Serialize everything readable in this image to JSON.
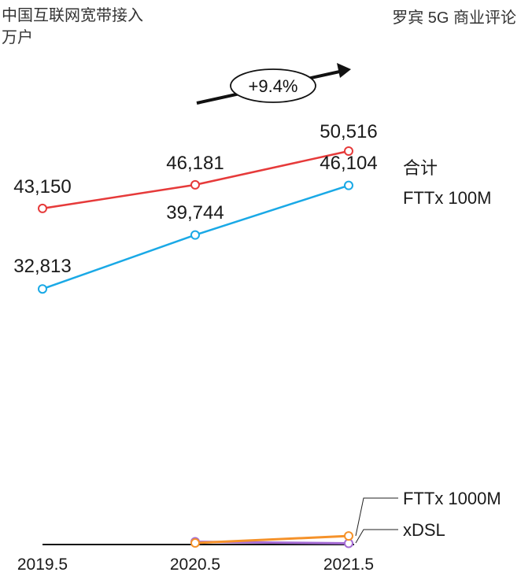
{
  "header": {
    "title_line1": "中国互联网宽带接入",
    "title_line2": "万户",
    "source": "罗宾 5G 商业评论"
  },
  "growth_label": "+9.4%",
  "colors": {
    "total": "#e63a3a",
    "fttx100": "#1aa9e6",
    "fttx1000": "#f5922a",
    "xdsl": "#a46bd4",
    "axis": "#111111"
  },
  "chart_data": {
    "type": "line",
    "title": "中国互联网宽带接入",
    "ylabel": "万户",
    "categories": [
      "2019.5",
      "2020.5",
      "2021.5"
    ],
    "ylim": [
      0,
      52000
    ],
    "series": [
      {
        "name": "合计",
        "values": [
          43150,
          46181,
          50516
        ],
        "labels": [
          "43,150",
          "46,181",
          "50,516"
        ]
      },
      {
        "name": "FTTx 100M",
        "values": [
          32813,
          39744,
          46104
        ],
        "labels": [
          "32,813",
          "39,744",
          "46,104"
        ]
      },
      {
        "name": "FTTx 1000M",
        "values": [
          null,
          200,
          1100
        ]
      },
      {
        "name": "xDSL",
        "values": [
          null,
          350,
          150
        ]
      }
    ]
  }
}
